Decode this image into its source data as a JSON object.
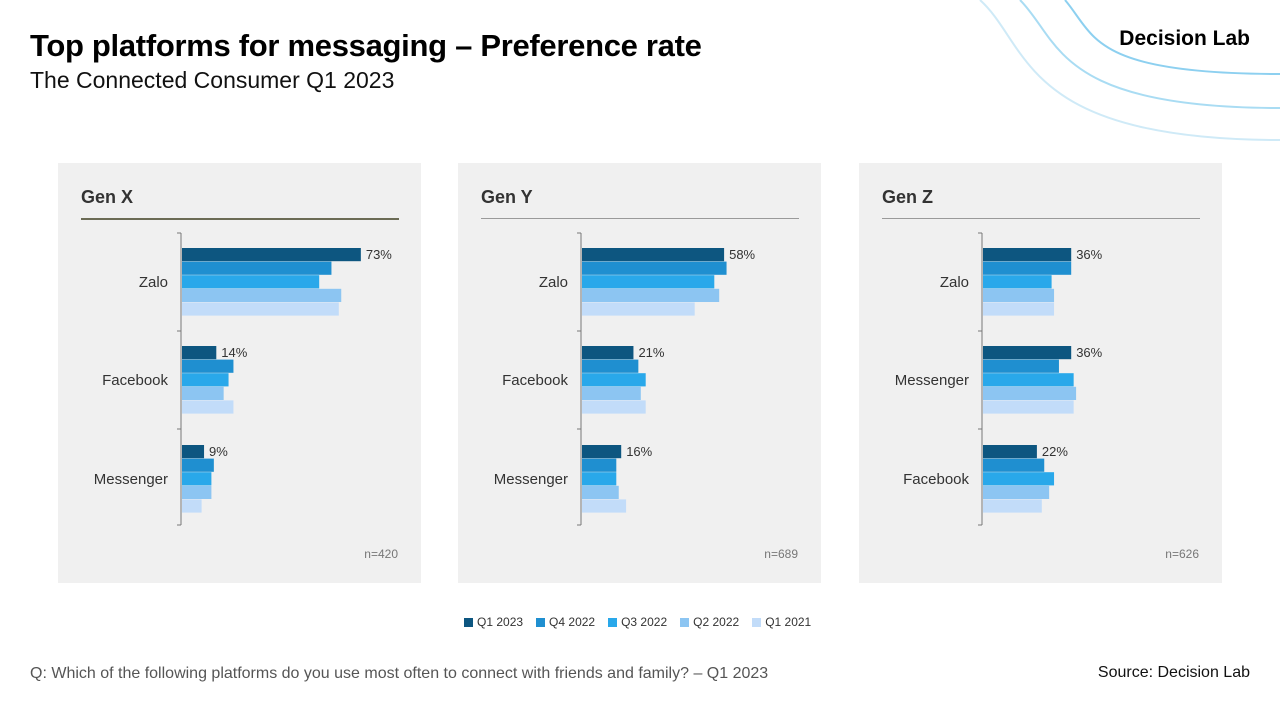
{
  "header": {
    "title": "Top platforms for messaging – Preference rate",
    "subtitle": "The Connected Consumer Q1 2023",
    "brand": "Decision Lab"
  },
  "footer": {
    "question": "Q: Which of the following platforms do you use most often to connect with friends and family? – Q1 2023",
    "source": "Source: Decision Lab"
  },
  "colors": {
    "series": [
      "#0d5680",
      "#1f8fd0",
      "#29a8ea",
      "#8cc5f2",
      "#c2dcf9"
    ],
    "panel_bg": "#f0f0f0",
    "deco_line": "#a9dcf3"
  },
  "chart_data": [
    {
      "type": "bar",
      "orientation": "horizontal",
      "title": "Gen X",
      "sample": "n=420",
      "title_rule_color": "#6b6b55",
      "categories": [
        "Zalo",
        "Facebook",
        "Messenger"
      ],
      "series": [
        {
          "name": "Q1 2023",
          "values": [
            73,
            14,
            9
          ]
        },
        {
          "name": "Q4 2022",
          "values": [
            61,
            21,
            13
          ]
        },
        {
          "name": "Q3 2022",
          "values": [
            56,
            19,
            12
          ]
        },
        {
          "name": "Q2 2022",
          "values": [
            65,
            17,
            12
          ]
        },
        {
          "name": "Q1 2021",
          "values": [
            64,
            21,
            8
          ]
        }
      ],
      "data_labels": [
        "73%",
        "14%",
        "9%"
      ],
      "xlim": [
        0,
        100
      ]
    },
    {
      "type": "bar",
      "orientation": "horizontal",
      "title": "Gen Y",
      "sample": "n=689",
      "title_rule_color": "#9a9a9a",
      "categories": [
        "Zalo",
        "Facebook",
        "Messenger"
      ],
      "series": [
        {
          "name": "Q1 2023",
          "values": [
            58,
            21,
            16
          ]
        },
        {
          "name": "Q4 2022",
          "values": [
            59,
            23,
            14
          ]
        },
        {
          "name": "Q3 2022",
          "values": [
            54,
            26,
            14
          ]
        },
        {
          "name": "Q2 2022",
          "values": [
            56,
            24,
            15
          ]
        },
        {
          "name": "Q1 2021",
          "values": [
            46,
            26,
            18
          ]
        }
      ],
      "data_labels": [
        "58%",
        "21%",
        "16%"
      ],
      "xlim": [
        0,
        100
      ]
    },
    {
      "type": "bar",
      "orientation": "horizontal",
      "title": "Gen Z",
      "sample": "n=626",
      "title_rule_color": "#9a9a9a",
      "categories": [
        "Zalo",
        "Messenger",
        "Facebook"
      ],
      "series": [
        {
          "name": "Q1 2023",
          "values": [
            36,
            36,
            22
          ]
        },
        {
          "name": "Q4 2022",
          "values": [
            36,
            31,
            25
          ]
        },
        {
          "name": "Q3 2022",
          "values": [
            28,
            37,
            29
          ]
        },
        {
          "name": "Q2 2022",
          "values": [
            29,
            38,
            27
          ]
        },
        {
          "name": "Q1 2021",
          "values": [
            29,
            37,
            24
          ]
        }
      ],
      "data_labels": [
        "36%",
        "36%",
        "22%"
      ],
      "xlim": [
        0,
        100
      ]
    }
  ],
  "legend": [
    "Q1 2023",
    "Q4 2022",
    "Q3 2022",
    "Q2 2022",
    "Q1 2021"
  ]
}
